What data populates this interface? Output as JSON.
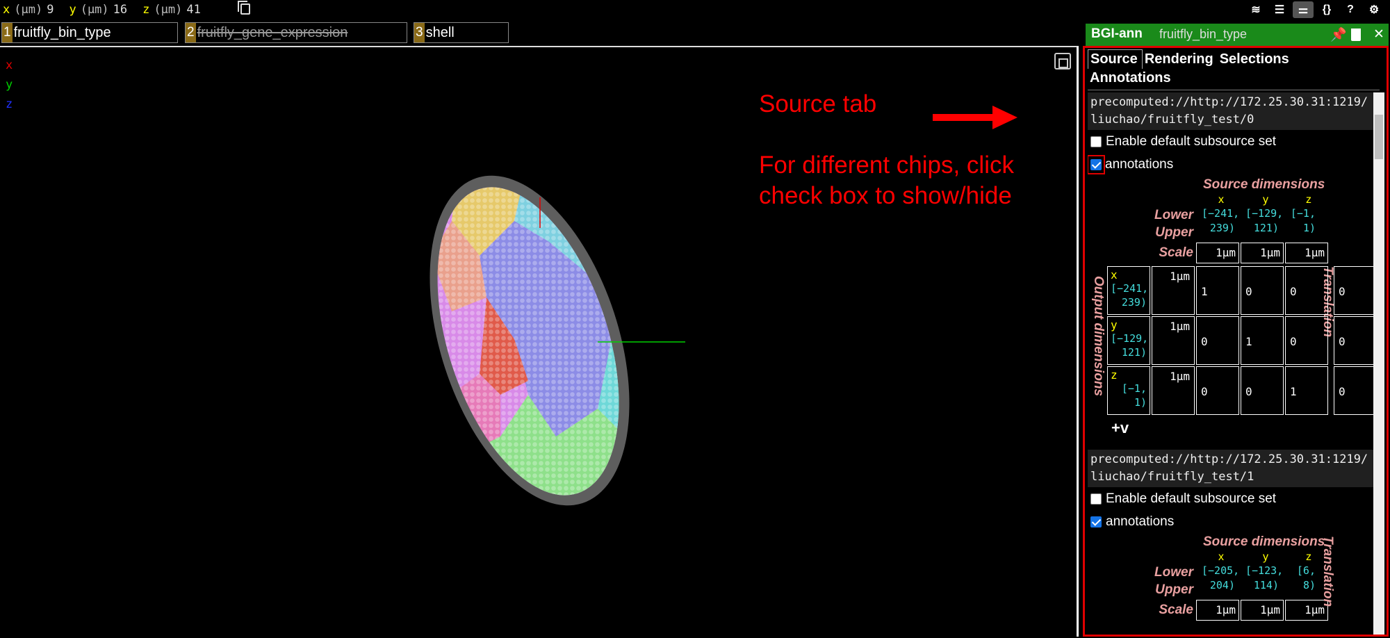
{
  "coords": {
    "x_label": "x",
    "y_label": "y",
    "z_label": "z",
    "unit": "(μm)",
    "x": "9",
    "y": "16",
    "z": "41"
  },
  "layer_tabs": [
    {
      "num": "1",
      "name": "fruitfly_bin_type"
    },
    {
      "num": "2",
      "name": "fruitfly_gene_expression"
    },
    {
      "num": "3",
      "name": "shell"
    }
  ],
  "add_layer": "+",
  "viewer": {
    "axis_legend": {
      "x": "x",
      "y": "y",
      "z": "z"
    },
    "annotation_title": "Source tab",
    "annotation_line1": "For different chips, click",
    "annotation_line2": "check box to show/hide"
  },
  "toolbar_icons": {
    "layers": "≋",
    "list": "☰",
    "settings_sliders": "⚌",
    "json": "{}",
    "help": "?",
    "gear": "⚙"
  },
  "panel": {
    "layer_name": "BGI-ann",
    "layer_type": "fruitfly_bin_type",
    "tabs": [
      "Source",
      "Rendering",
      "Selections",
      "Annotations"
    ],
    "sources": [
      {
        "url": "precomputed://http://172.25.30.31:1219/liuchao/fruitfly_test/0",
        "enable_default_label": "Enable default subsource set",
        "enable_default_checked": false,
        "subsource_label": "annotations",
        "subsource_checked": true,
        "source_dimensions_title": "Source dimensions",
        "dim_names": [
          "x",
          "y",
          "z"
        ],
        "lower_bounds": [
          "[−241,",
          "[−129,",
          "[−1,"
        ],
        "upper_bounds": [
          "239)",
          "121)",
          "1)"
        ],
        "lower_label": "Lower",
        "upper_label": "Upper",
        "scale_label": "Scale",
        "scales": [
          "1μm",
          "1μm",
          "1μm"
        ],
        "translation_label": "Translation",
        "output_dimensions_label": "Output dimensions",
        "output_rows": [
          {
            "name": "x",
            "lower": "[−241,",
            "upper": "239)",
            "scale": "1μm",
            "matrix": [
              "1",
              "0",
              "0"
            ],
            "translation": "0"
          },
          {
            "name": "y",
            "lower": "[−129,",
            "upper": "121)",
            "scale": "1μm",
            "matrix": [
              "0",
              "1",
              "0"
            ],
            "translation": "0"
          },
          {
            "name": "z",
            "lower": "[−1,",
            "upper": "1)",
            "scale": "1μm",
            "matrix": [
              "0",
              "0",
              "1"
            ],
            "translation": "0"
          }
        ],
        "add_dim": "+v"
      },
      {
        "url": "precomputed://http://172.25.30.31:1219/liuchao/fruitfly_test/1",
        "enable_default_label": "Enable default subsource set",
        "enable_default_checked": false,
        "subsource_label": "annotations",
        "subsource_checked": true,
        "source_dimensions_title": "Source dimensions",
        "dim_names": [
          "x",
          "y",
          "z"
        ],
        "lower_bounds": [
          "[−205,",
          "[−123,",
          "[6,"
        ],
        "upper_bounds": [
          "204)",
          "114)",
          "8)"
        ],
        "lower_label": "Lower",
        "upper_label": "Upper",
        "scale_label": "Scale",
        "scales": [
          "1μm",
          "1μm",
          "1μm"
        ],
        "translation_label": "Translation"
      }
    ]
  }
}
